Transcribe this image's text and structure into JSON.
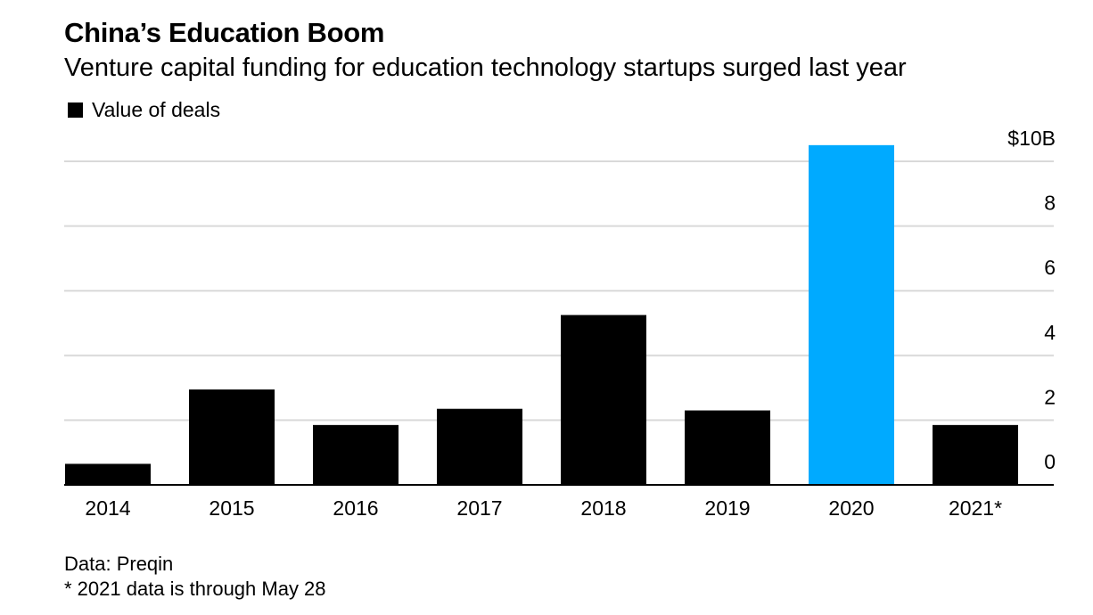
{
  "chart_data": {
    "type": "bar",
    "title": "China’s Education Boom",
    "subtitle": "Venture capital funding for education technology startups surged last year",
    "legend": [
      {
        "label": "Value of deals",
        "color": "#000000"
      }
    ],
    "categories": [
      "2014",
      "2015",
      "2016",
      "2017",
      "2018",
      "2019",
      "2020",
      "2021*"
    ],
    "series": [
      {
        "name": "Value of deals",
        "values": [
          0.65,
          2.95,
          1.85,
          2.35,
          5.25,
          2.3,
          10.5,
          1.85
        ]
      }
    ],
    "highlight": {
      "category": "2020",
      "color": "#00aaff"
    },
    "bar_color": "#000000",
    "ylim": [
      0,
      10.5
    ],
    "y_ticks": [
      0,
      2,
      4,
      6,
      8,
      10
    ],
    "y_tick_labels": [
      "0",
      "2",
      "4",
      "6",
      "8",
      "$10B"
    ],
    "y_axis_side": "right",
    "grid": true,
    "legend_position": "top-left"
  },
  "footer": {
    "source": "Data: Preqin",
    "note": "* 2021 data is through May 28"
  }
}
